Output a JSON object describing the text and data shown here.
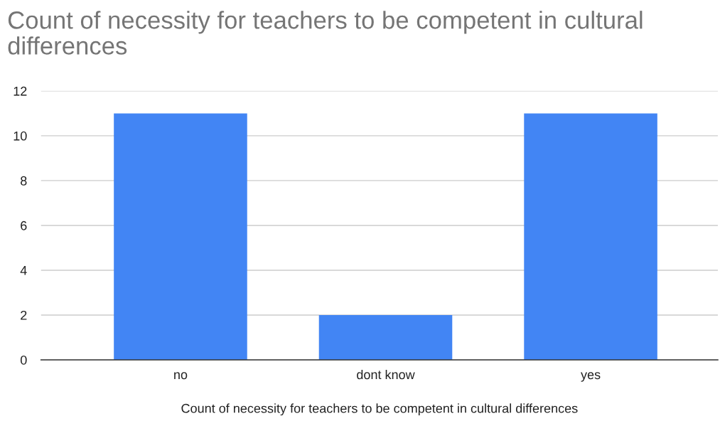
{
  "chart_data": {
    "type": "bar",
    "title": "Count of necessity for teachers to be competent in cultural differences",
    "xlabel": "Count of necessity for teachers to be competent in cultural differences",
    "categories": [
      "no",
      "dont know",
      "yes"
    ],
    "values": [
      11,
      2,
      11
    ],
    "color": "#4285f4",
    "ylim": [
      0,
      12
    ],
    "yticks": [
      0,
      2,
      4,
      6,
      8,
      10,
      12
    ],
    "grid": "y"
  }
}
